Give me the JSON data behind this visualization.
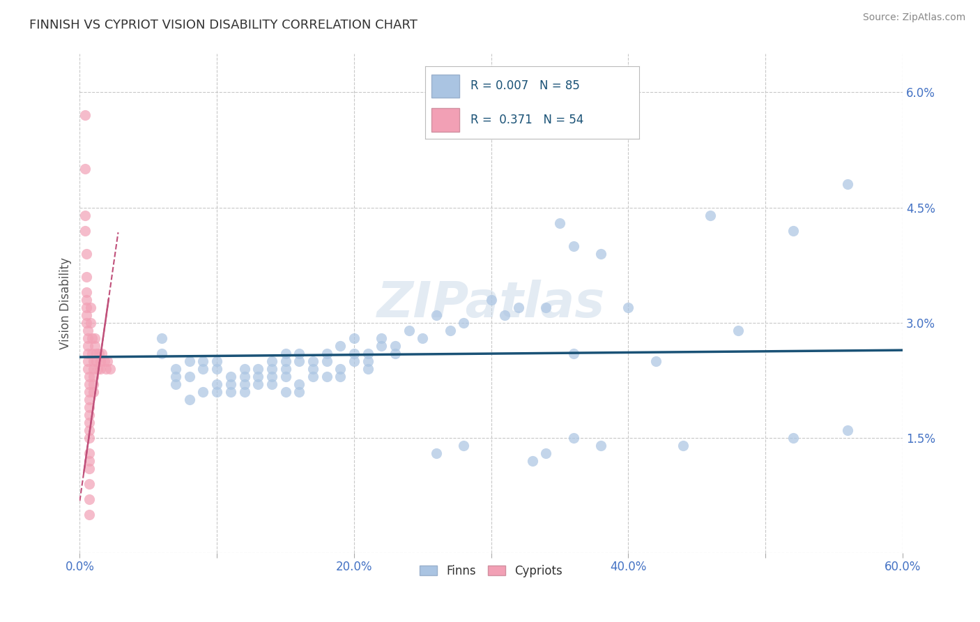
{
  "title": "FINNISH VS CYPRIOT VISION DISABILITY CORRELATION CHART",
  "source": "Source: ZipAtlas.com",
  "ylabel": "Vision Disability",
  "xlim": [
    0.0,
    0.6
  ],
  "ylim": [
    0.0,
    0.065
  ],
  "xticks": [
    0.0,
    0.1,
    0.2,
    0.3,
    0.4,
    0.5,
    0.6
  ],
  "xtick_labels": [
    "0.0%",
    "",
    "20.0%",
    "",
    "40.0%",
    "",
    "60.0%"
  ],
  "yticks": [
    0.0,
    0.015,
    0.03,
    0.045,
    0.06
  ],
  "ytick_labels": [
    "",
    "1.5%",
    "3.0%",
    "4.5%",
    "6.0%"
  ],
  "grid_color": "#c8c8c8",
  "background_color": "#ffffff",
  "watermark": "ZIPatlas",
  "legend_R_finns": "0.007",
  "legend_N_finns": "85",
  "legend_R_cypriots": "0.371",
  "legend_N_cypriots": "54",
  "finn_color": "#aac4e2",
  "cypriot_color": "#f2a0b5",
  "finn_line_color": "#1a5276",
  "cypriot_line_color": "#c0507a",
  "finn_line_slope": 0.0015,
  "finn_line_intercept": 0.0255,
  "cypriot_line_x0": 0.001,
  "cypriot_line_y0": 0.008,
  "cypriot_line_x1": 0.025,
  "cypriot_line_y1": 0.038,
  "finn_scatter": [
    [
      0.56,
      0.048
    ],
    [
      0.52,
      0.042
    ],
    [
      0.48,
      0.029
    ],
    [
      0.46,
      0.044
    ],
    [
      0.44,
      0.014
    ],
    [
      0.42,
      0.025
    ],
    [
      0.4,
      0.032
    ],
    [
      0.38,
      0.039
    ],
    [
      0.38,
      0.014
    ],
    [
      0.36,
      0.04
    ],
    [
      0.36,
      0.026
    ],
    [
      0.36,
      0.015
    ],
    [
      0.35,
      0.043
    ],
    [
      0.34,
      0.032
    ],
    [
      0.34,
      0.013
    ],
    [
      0.33,
      0.012
    ],
    [
      0.32,
      0.032
    ],
    [
      0.31,
      0.031
    ],
    [
      0.3,
      0.033
    ],
    [
      0.28,
      0.03
    ],
    [
      0.28,
      0.014
    ],
    [
      0.27,
      0.029
    ],
    [
      0.26,
      0.031
    ],
    [
      0.26,
      0.013
    ],
    [
      0.25,
      0.028
    ],
    [
      0.24,
      0.029
    ],
    [
      0.23,
      0.027
    ],
    [
      0.23,
      0.026
    ],
    [
      0.22,
      0.028
    ],
    [
      0.22,
      0.027
    ],
    [
      0.21,
      0.026
    ],
    [
      0.21,
      0.025
    ],
    [
      0.21,
      0.024
    ],
    [
      0.2,
      0.028
    ],
    [
      0.2,
      0.026
    ],
    [
      0.2,
      0.025
    ],
    [
      0.19,
      0.027
    ],
    [
      0.19,
      0.024
    ],
    [
      0.19,
      0.023
    ],
    [
      0.18,
      0.026
    ],
    [
      0.18,
      0.025
    ],
    [
      0.18,
      0.023
    ],
    [
      0.17,
      0.025
    ],
    [
      0.17,
      0.024
    ],
    [
      0.17,
      0.023
    ],
    [
      0.16,
      0.026
    ],
    [
      0.16,
      0.025
    ],
    [
      0.16,
      0.022
    ],
    [
      0.16,
      0.021
    ],
    [
      0.15,
      0.026
    ],
    [
      0.15,
      0.025
    ],
    [
      0.15,
      0.024
    ],
    [
      0.15,
      0.023
    ],
    [
      0.15,
      0.021
    ],
    [
      0.14,
      0.025
    ],
    [
      0.14,
      0.024
    ],
    [
      0.14,
      0.023
    ],
    [
      0.14,
      0.022
    ],
    [
      0.13,
      0.024
    ],
    [
      0.13,
      0.023
    ],
    [
      0.13,
      0.022
    ],
    [
      0.12,
      0.024
    ],
    [
      0.12,
      0.023
    ],
    [
      0.12,
      0.022
    ],
    [
      0.12,
      0.021
    ],
    [
      0.11,
      0.023
    ],
    [
      0.11,
      0.022
    ],
    [
      0.11,
      0.021
    ],
    [
      0.1,
      0.025
    ],
    [
      0.1,
      0.024
    ],
    [
      0.1,
      0.022
    ],
    [
      0.1,
      0.021
    ],
    [
      0.09,
      0.025
    ],
    [
      0.09,
      0.024
    ],
    [
      0.09,
      0.021
    ],
    [
      0.08,
      0.025
    ],
    [
      0.08,
      0.023
    ],
    [
      0.08,
      0.02
    ],
    [
      0.07,
      0.024
    ],
    [
      0.07,
      0.023
    ],
    [
      0.07,
      0.022
    ],
    [
      0.06,
      0.028
    ],
    [
      0.06,
      0.026
    ],
    [
      0.52,
      0.015
    ],
    [
      0.56,
      0.016
    ]
  ],
  "cypriot_scatter": [
    [
      0.004,
      0.057
    ],
    [
      0.004,
      0.05
    ],
    [
      0.004,
      0.044
    ],
    [
      0.004,
      0.042
    ],
    [
      0.005,
      0.039
    ],
    [
      0.005,
      0.036
    ],
    [
      0.005,
      0.034
    ],
    [
      0.005,
      0.033
    ],
    [
      0.005,
      0.032
    ],
    [
      0.005,
      0.031
    ],
    [
      0.005,
      0.03
    ],
    [
      0.006,
      0.029
    ],
    [
      0.006,
      0.028
    ],
    [
      0.006,
      0.027
    ],
    [
      0.006,
      0.026
    ],
    [
      0.006,
      0.025
    ],
    [
      0.006,
      0.024
    ],
    [
      0.007,
      0.023
    ],
    [
      0.007,
      0.022
    ],
    [
      0.007,
      0.021
    ],
    [
      0.007,
      0.02
    ],
    [
      0.007,
      0.019
    ],
    [
      0.007,
      0.018
    ],
    [
      0.007,
      0.017
    ],
    [
      0.007,
      0.016
    ],
    [
      0.007,
      0.015
    ],
    [
      0.007,
      0.013
    ],
    [
      0.007,
      0.012
    ],
    [
      0.007,
      0.011
    ],
    [
      0.007,
      0.009
    ],
    [
      0.007,
      0.007
    ],
    [
      0.007,
      0.005
    ],
    [
      0.008,
      0.032
    ],
    [
      0.008,
      0.03
    ],
    [
      0.009,
      0.028
    ],
    [
      0.009,
      0.026
    ],
    [
      0.01,
      0.025
    ],
    [
      0.01,
      0.024
    ],
    [
      0.01,
      0.023
    ],
    [
      0.01,
      0.022
    ],
    [
      0.01,
      0.021
    ],
    [
      0.011,
      0.028
    ],
    [
      0.011,
      0.027
    ],
    [
      0.012,
      0.026
    ],
    [
      0.012,
      0.025
    ],
    [
      0.013,
      0.024
    ],
    [
      0.014,
      0.026
    ],
    [
      0.015,
      0.025
    ],
    [
      0.015,
      0.024
    ],
    [
      0.016,
      0.026
    ],
    [
      0.018,
      0.025
    ],
    [
      0.019,
      0.024
    ],
    [
      0.02,
      0.025
    ],
    [
      0.022,
      0.024
    ]
  ]
}
